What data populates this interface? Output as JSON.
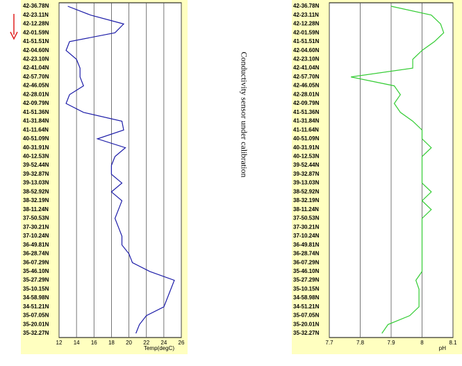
{
  "annotation": "Conductivity sensor under calibration",
  "chart_data": [
    {
      "type": "line",
      "orientation": "horizontal",
      "xlabel": "Temp(degC)",
      "color": "#1c1ca8",
      "categories": [
        "42-36.78N",
        "42-23.11N",
        "42-12.28N",
        "42-01.59N",
        "41-51.51N",
        "42-04.60N",
        "42-23.10N",
        "42-41.04N",
        "42-57.70N",
        "42-46.05N",
        "42-28.01N",
        "42-09.79N",
        "41-51.36N",
        "41-31.84N",
        "41-11.64N",
        "40-51.09N",
        "40-31.91N",
        "40-12.53N",
        "39-52.44N",
        "39-32.87N",
        "39-13.03N",
        "38-52.92N",
        "38-32.19N",
        "38-11.24N",
        "37-50.53N",
        "37-30.21N",
        "37-10.24N",
        "36-49.81N",
        "36-28.74N",
        "36-07.29N",
        "35-46.10N",
        "35-27.29N",
        "35-10.15N",
        "34-58.98N",
        "34-51.21N",
        "35-07.05N",
        "35-20.01N",
        "35-32.27N"
      ],
      "values": [
        13,
        15.6,
        19.4,
        18.4,
        13.2,
        12.8,
        14,
        14.4,
        14.4,
        14.8,
        13.2,
        12.8,
        14.8,
        19.2,
        19.4,
        16.4,
        19.6,
        18.4,
        18,
        18,
        19.2,
        18,
        19.2,
        18.8,
        18.4,
        18.8,
        19.2,
        19.2,
        20,
        20.4,
        22.4,
        25.2,
        24.8,
        24.4,
        24,
        22,
        21.2,
        20.8
      ],
      "xlim": [
        12,
        26
      ],
      "xticks": [
        12,
        14,
        16,
        18,
        20,
        22,
        24,
        26
      ],
      "grid": true
    },
    {
      "type": "line",
      "orientation": "horizontal",
      "xlabel": "pH",
      "color": "#33cc33",
      "categories": [
        "42-36.78N",
        "42-23.11N",
        "42-12.28N",
        "42-01.59N",
        "41-51.51N",
        "42-04.60N",
        "42-23.10N",
        "42-41.04N",
        "42-57.70N",
        "42-46.05N",
        "42-28.01N",
        "42-09.79N",
        "41-51.36N",
        "41-31.84N",
        "41-11.64N",
        "40-51.09N",
        "40-31.91N",
        "40-12.53N",
        "39-52.44N",
        "39-32.87N",
        "39-13.03N",
        "38-52.92N",
        "38-32.19N",
        "38-11.24N",
        "37-50.53N",
        "37-30.21N",
        "37-10.24N",
        "36-49.81N",
        "36-28.74N",
        "36-07.29N",
        "35-46.10N",
        "35-27.29N",
        "35-10.15N",
        "34-58.98N",
        "34-51.21N",
        "35-07.05N",
        "35-20.01N",
        "35-32.27N"
      ],
      "values": [
        7.9,
        8.03,
        8.06,
        8.07,
        8.04,
        8.0,
        7.97,
        7.97,
        7.77,
        7.91,
        7.93,
        7.91,
        7.93,
        7.97,
        8.0,
        8.0,
        8.03,
        8.0,
        8.0,
        8.0,
        8.0,
        8.03,
        8.0,
        8.03,
        8.0,
        8.0,
        8.0,
        8.0,
        8.0,
        8.0,
        8.0,
        7.98,
        7.99,
        7.99,
        7.99,
        7.96,
        7.89,
        7.87
      ],
      "xlim": [
        7.7,
        8.1
      ],
      "xticks": [
        7.7,
        7.8,
        7.9,
        8,
        8.1
      ],
      "grid": true
    }
  ]
}
